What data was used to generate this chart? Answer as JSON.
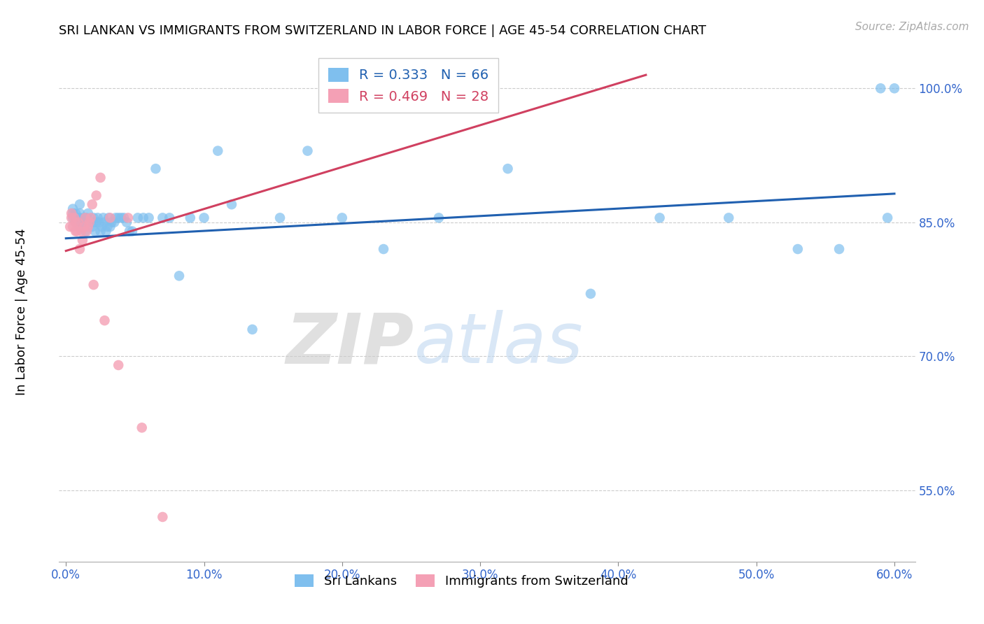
{
  "title": "SRI LANKAN VS IMMIGRANTS FROM SWITZERLAND IN LABOR FORCE | AGE 45-54 CORRELATION CHART",
  "source": "Source: ZipAtlas.com",
  "ylabel": "In Labor Force | Age 45-54",
  "xlabel_ticks": [
    "0.0%",
    "10.0%",
    "20.0%",
    "30.0%",
    "40.0%",
    "50.0%",
    "60.0%"
  ],
  "xlabel_vals": [
    0.0,
    0.1,
    0.2,
    0.3,
    0.4,
    0.5,
    0.6
  ],
  "ytick_labels": [
    "55.0%",
    "70.0%",
    "85.0%",
    "100.0%"
  ],
  "ytick_vals": [
    0.55,
    0.7,
    0.85,
    1.0
  ],
  "xlim": [
    -0.005,
    0.615
  ],
  "ylim": [
    0.47,
    1.05
  ],
  "blue_color": "#7fbfee",
  "pink_color": "#f4a0b5",
  "blue_line_color": "#2060b0",
  "pink_line_color": "#d04060",
  "legend_blue_label": "R = 0.333   N = 66",
  "legend_pink_label": "R = 0.469   N = 28",
  "watermark_zip": "ZIP",
  "watermark_atlas": "atlas",
  "blue_scatter_x": [
    0.005,
    0.005,
    0.005,
    0.007,
    0.007,
    0.009,
    0.01,
    0.01,
    0.01,
    0.01,
    0.012,
    0.013,
    0.014,
    0.015,
    0.016,
    0.017,
    0.019,
    0.02,
    0.02,
    0.021,
    0.022,
    0.023,
    0.024,
    0.025,
    0.026,
    0.027,
    0.028,
    0.029,
    0.03,
    0.031,
    0.032,
    0.033,
    0.035,
    0.036,
    0.038,
    0.04,
    0.042,
    0.044,
    0.046,
    0.048,
    0.052,
    0.056,
    0.06,
    0.065,
    0.07,
    0.075,
    0.082,
    0.09,
    0.1,
    0.11,
    0.12,
    0.135,
    0.155,
    0.175,
    0.2,
    0.23,
    0.27,
    0.32,
    0.38,
    0.43,
    0.48,
    0.53,
    0.56,
    0.59,
    0.595,
    0.6
  ],
  "blue_scatter_y": [
    0.855,
    0.86,
    0.865,
    0.85,
    0.86,
    0.855,
    0.845,
    0.855,
    0.86,
    0.87,
    0.85,
    0.855,
    0.84,
    0.855,
    0.86,
    0.85,
    0.845,
    0.85,
    0.855,
    0.84,
    0.85,
    0.855,
    0.85,
    0.84,
    0.845,
    0.855,
    0.85,
    0.84,
    0.845,
    0.855,
    0.845,
    0.85,
    0.85,
    0.855,
    0.855,
    0.855,
    0.855,
    0.85,
    0.84,
    0.84,
    0.855,
    0.855,
    0.855,
    0.91,
    0.855,
    0.855,
    0.79,
    0.855,
    0.855,
    0.93,
    0.87,
    0.73,
    0.855,
    0.93,
    0.855,
    0.82,
    0.855,
    0.91,
    0.77,
    0.855,
    0.855,
    0.82,
    0.82,
    1.0,
    0.855,
    1.0
  ],
  "pink_scatter_x": [
    0.003,
    0.004,
    0.004,
    0.005,
    0.006,
    0.007,
    0.007,
    0.008,
    0.009,
    0.01,
    0.011,
    0.012,
    0.013,
    0.014,
    0.015,
    0.016,
    0.017,
    0.018,
    0.019,
    0.02,
    0.022,
    0.025,
    0.028,
    0.032,
    0.038,
    0.045,
    0.055,
    0.07
  ],
  "pink_scatter_y": [
    0.845,
    0.855,
    0.86,
    0.845,
    0.855,
    0.84,
    0.85,
    0.84,
    0.85,
    0.82,
    0.84,
    0.83,
    0.845,
    0.855,
    0.84,
    0.845,
    0.85,
    0.855,
    0.87,
    0.78,
    0.88,
    0.9,
    0.74,
    0.855,
    0.69,
    0.855,
    0.62,
    0.52
  ],
  "blue_trend_x": [
    0.0,
    0.6
  ],
  "blue_trend_y": [
    0.832,
    0.882
  ],
  "pink_trend_x": [
    0.0,
    0.42
  ],
  "pink_trend_y": [
    0.818,
    1.015
  ],
  "legend_label_sri": "Sri Lankans",
  "legend_label_swiss": "Immigrants from Switzerland",
  "title_fontsize": 13,
  "tick_fontsize": 12,
  "source_fontsize": 11
}
